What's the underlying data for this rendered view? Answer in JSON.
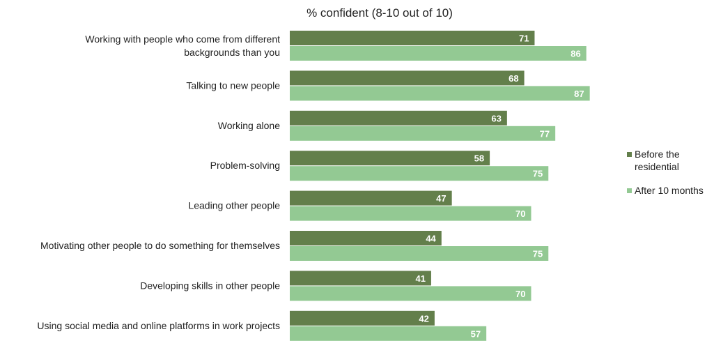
{
  "chart_data": {
    "type": "bar",
    "orientation": "horizontal",
    "title": "% confident (8-10 out of 10)",
    "xlabel": "",
    "ylabel": "",
    "xlim": [
      0,
      100
    ],
    "grid": false,
    "legend_position": "right",
    "categories": [
      "Working with people who come from different backgrounds than you",
      "Talking to new people",
      "Working alone",
      "Problem-solving",
      "Leading other people",
      "Motivating other people to do something for themselves",
      "Developing skills in other people",
      "Using social media and online platforms in work projects"
    ],
    "series": [
      {
        "name": "Before the residential",
        "color": "#637f4b",
        "values": [
          71,
          68,
          63,
          58,
          47,
          44,
          41,
          42
        ]
      },
      {
        "name": "After 10 months",
        "color": "#93c993",
        "values": [
          86,
          87,
          77,
          75,
          70,
          75,
          70,
          57
        ]
      }
    ]
  }
}
